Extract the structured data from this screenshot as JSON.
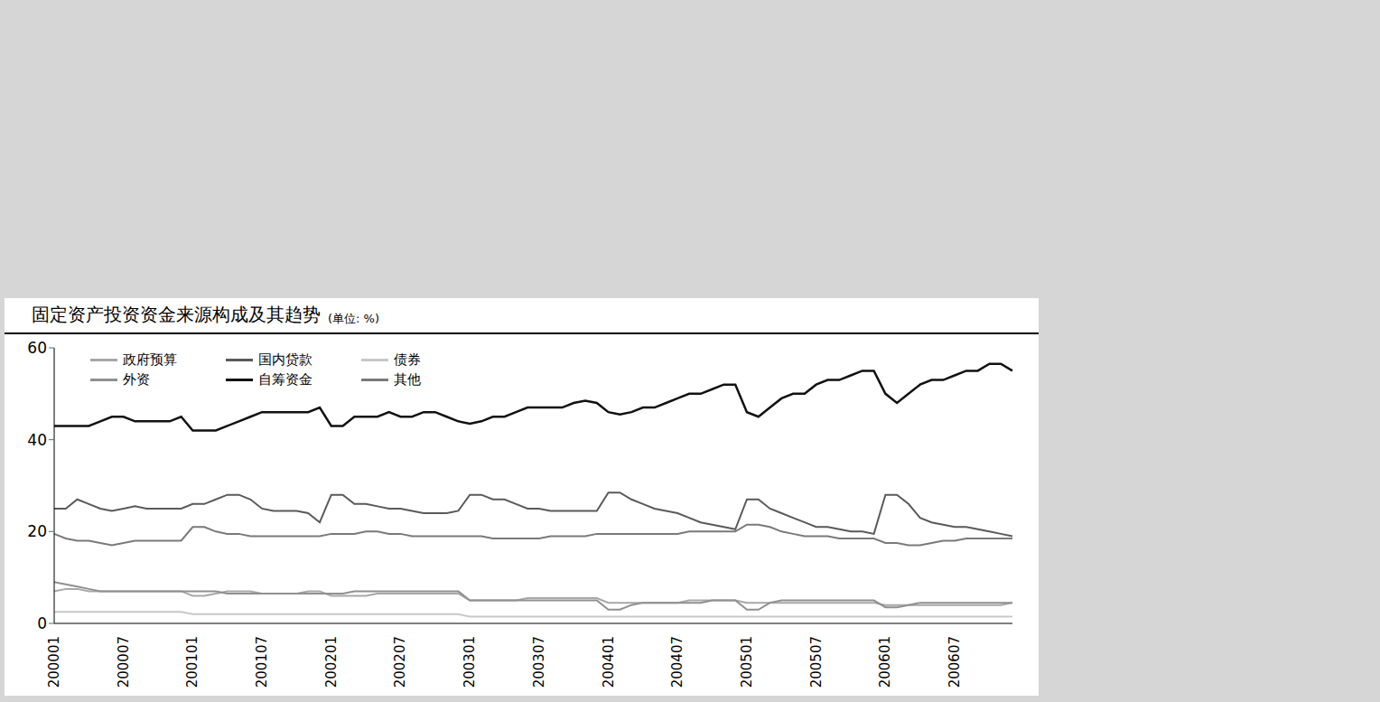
{
  "chart_data": {
    "type": "line",
    "title": "固定资产投资资金来源构成及其趋势",
    "subtitle": "(单位: %)",
    "categories": [
      "200001",
      null,
      null,
      null,
      null,
      null,
      "200007",
      null,
      null,
      null,
      null,
      null,
      "200101",
      null,
      null,
      null,
      null,
      null,
      "200107",
      null,
      null,
      null,
      null,
      null,
      "200201",
      null,
      null,
      null,
      null,
      null,
      "200207",
      null,
      null,
      null,
      null,
      null,
      "200301",
      null,
      null,
      null,
      null,
      null,
      "200307",
      null,
      null,
      null,
      null,
      null,
      "200401",
      null,
      null,
      null,
      null,
      null,
      "200407",
      null,
      null,
      null,
      null,
      null,
      "200501",
      null,
      null,
      null,
      null,
      null,
      "200507",
      null,
      null,
      null,
      null,
      null,
      "200601",
      null,
      null,
      null,
      null,
      null,
      "200607",
      null,
      null,
      null,
      null,
      null
    ],
    "series": [
      {
        "name": "政府预算",
        "color": "#a8a8a8",
        "values": [
          7,
          7.5,
          7.5,
          7,
          7,
          7,
          7,
          7,
          7,
          7,
          7,
          7,
          6,
          6,
          6.5,
          7,
          7,
          7,
          6.5,
          6.5,
          6.5,
          6.5,
          7,
          7,
          6,
          6,
          6,
          6,
          6.5,
          6.5,
          6.5,
          6.5,
          6.5,
          6.5,
          6.5,
          6.5,
          5,
          5,
          5,
          5,
          5,
          5.5,
          5.5,
          5.5,
          5.5,
          5.5,
          5.5,
          5.5,
          4.5,
          4.5,
          4.5,
          4.5,
          4.5,
          4.5,
          4.5,
          5,
          5,
          5,
          5,
          5,
          4.5,
          4.5,
          4.5,
          4.5,
          4.5,
          4.5,
          4.5,
          4.5,
          4.5,
          4.5,
          4.5,
          4.5,
          4,
          4,
          4,
          4,
          4,
          4,
          4,
          4,
          4,
          4,
          4,
          4.5
        ]
      },
      {
        "name": "国内贷款",
        "color": "#5a5a5a",
        "values": [
          25,
          25,
          27,
          26,
          25,
          24.5,
          25,
          25.5,
          25,
          25,
          25,
          25,
          26,
          26,
          27,
          28,
          28,
          27,
          25,
          24.5,
          24.5,
          24.5,
          24,
          22,
          28,
          28,
          26,
          26,
          25.5,
          25,
          25,
          24.5,
          24,
          24,
          24,
          24.5,
          28,
          28,
          27,
          27,
          26,
          25,
          25,
          24.5,
          24.5,
          24.5,
          24.5,
          24.5,
          28.5,
          28.5,
          27,
          26,
          25,
          24.5,
          24,
          23,
          22,
          21.5,
          21,
          20.5,
          27,
          27,
          25,
          24,
          23,
          22,
          21,
          21,
          20.5,
          20,
          20,
          19.5,
          28,
          28,
          26,
          23,
          22,
          21.5,
          21,
          21,
          20.5,
          20,
          19.5,
          19
        ]
      },
      {
        "name": "债券",
        "color": "#c8c8c8",
        "values": [
          2.5,
          2.5,
          2.5,
          2.5,
          2.5,
          2.5,
          2.5,
          2.5,
          2.5,
          2.5,
          2.5,
          2.5,
          2,
          2,
          2,
          2,
          2,
          2,
          2,
          2,
          2,
          2,
          2,
          2,
          2,
          2,
          2,
          2,
          2,
          2,
          2,
          2,
          2,
          2,
          2,
          2,
          1.5,
          1.5,
          1.5,
          1.5,
          1.5,
          1.5,
          1.5,
          1.5,
          1.5,
          1.5,
          1.5,
          1.5,
          1.5,
          1.5,
          1.5,
          1.5,
          1.5,
          1.5,
          1.5,
          1.5,
          1.5,
          1.5,
          1.5,
          1.5,
          1.5,
          1.5,
          1.5,
          1.5,
          1.5,
          1.5,
          1.5,
          1.5,
          1.5,
          1.5,
          1.5,
          1.5,
          1.5,
          1.5,
          1.5,
          1.5,
          1.5,
          1.5,
          1.5,
          1.5,
          1.5,
          1.5,
          1.5,
          1.5
        ]
      },
      {
        "name": "外资",
        "color": "#909090",
        "values": [
          9,
          8.5,
          8,
          7.5,
          7,
          7,
          7,
          7,
          7,
          7,
          7,
          7,
          7,
          7,
          7,
          6.5,
          6.5,
          6.5,
          6.5,
          6.5,
          6.5,
          6.5,
          6.5,
          6.5,
          6.5,
          6.5,
          7,
          7,
          7,
          7,
          7,
          7,
          7,
          7,
          7,
          7,
          5,
          5,
          5,
          5,
          5,
          5,
          5,
          5,
          5,
          5,
          5,
          5,
          3,
          3,
          4,
          4.5,
          4.5,
          4.5,
          4.5,
          4.5,
          4.5,
          5,
          5,
          5,
          3,
          3,
          4.5,
          5,
          5,
          5,
          5,
          5,
          5,
          5,
          5,
          5,
          3.5,
          3.5,
          4,
          4.5,
          4.5,
          4.5,
          4.5,
          4.5,
          4.5,
          4.5,
          4.5,
          4.5
        ]
      },
      {
        "name": "自筹资金",
        "color": "#111111",
        "values": [
          43,
          43,
          43,
          43,
          44,
          45,
          45,
          44,
          44,
          44,
          44,
          45,
          42,
          42,
          42,
          43,
          44,
          45,
          46,
          46,
          46,
          46,
          46,
          47,
          43,
          43,
          45,
          45,
          45,
          46,
          45,
          45,
          46,
          46,
          45,
          44,
          43.5,
          44,
          45,
          45,
          46,
          47,
          47,
          47,
          47,
          48,
          48.5,
          48,
          46,
          45.5,
          46,
          47,
          47,
          48,
          49,
          50,
          50,
          51,
          52,
          52,
          46,
          45,
          47,
          49,
          50,
          50,
          52,
          53,
          53,
          54,
          55,
          55,
          50,
          48,
          50,
          52,
          53,
          53,
          54,
          55,
          55,
          56.5,
          56.5,
          55
        ]
      },
      {
        "name": "其他",
        "color": "#7a7a7a",
        "values": [
          19.5,
          18.5,
          18,
          18,
          17.5,
          17,
          17.5,
          18,
          18,
          18,
          18,
          18,
          21,
          21,
          20,
          19.5,
          19.5,
          19,
          19,
          19,
          19,
          19,
          19,
          19,
          19.5,
          19.5,
          19.5,
          20,
          20,
          19.5,
          19.5,
          19,
          19,
          19,
          19,
          19,
          19,
          19,
          18.5,
          18.5,
          18.5,
          18.5,
          18.5,
          19,
          19,
          19,
          19,
          19.5,
          19.5,
          19.5,
          19.5,
          19.5,
          19.5,
          19.5,
          19.5,
          20,
          20,
          20,
          20,
          20,
          21.5,
          21.5,
          21,
          20,
          19.5,
          19,
          19,
          19,
          18.5,
          18.5,
          18.5,
          18.5,
          17.5,
          17.5,
          17,
          17,
          17.5,
          18,
          18,
          18.5,
          18.5,
          18.5,
          18.5,
          18.5
        ]
      }
    ],
    "ylim": [
      0,
      60
    ],
    "yticks": [
      0,
      20,
      40,
      60
    ],
    "grid": false,
    "legend": "upper left"
  }
}
